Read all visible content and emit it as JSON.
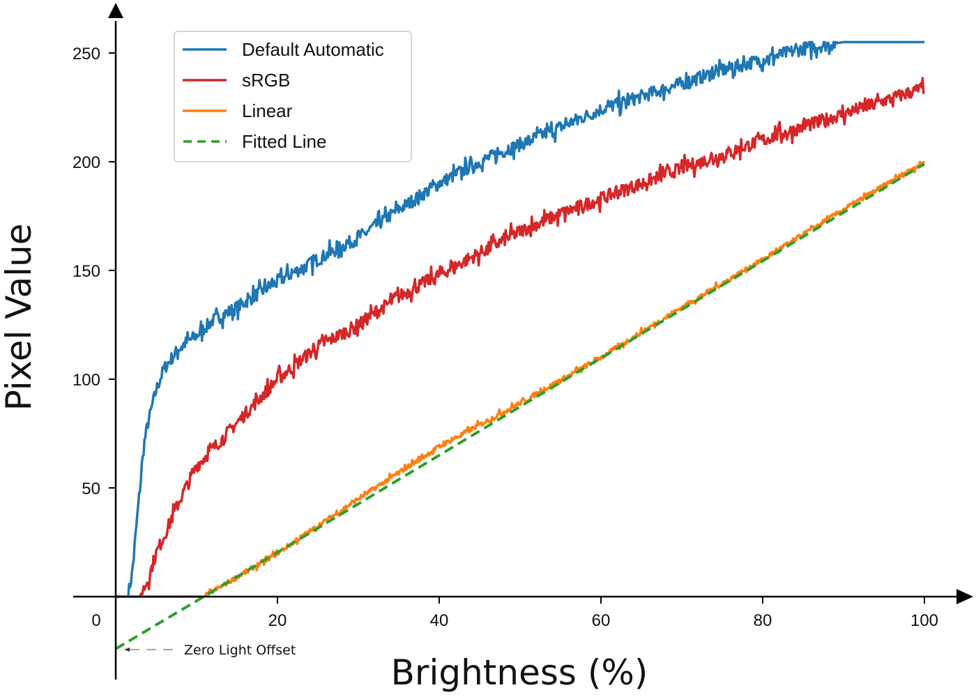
{
  "chart_data": {
    "type": "line",
    "title": "",
    "xlabel": "Brightness (%)",
    "ylabel": "Pixel Value",
    "xlim": [
      0,
      100
    ],
    "ylim": [
      -24,
      260
    ],
    "x_ticks": [
      0,
      20,
      40,
      60,
      80,
      100
    ],
    "x_tick_labels": [
      "0",
      "20",
      "40",
      "60",
      "80",
      "100"
    ],
    "y_ticks": [
      50,
      100,
      150,
      200,
      250
    ],
    "y_tick_labels": [
      "50",
      "100",
      "150",
      "200",
      "250"
    ],
    "grid": false,
    "legend_position": "upper left",
    "annotations": [
      {
        "text": "Zero Light Offset",
        "x": 0,
        "y": -24
      }
    ],
    "series": [
      {
        "name": "Default Automatic",
        "color": "#1f77b4",
        "style": "solid",
        "x": [
          0,
          1.5,
          2,
          2.5,
          3,
          3.5,
          4,
          5,
          6,
          7,
          8,
          10,
          12,
          15,
          20,
          25,
          30,
          35,
          40,
          45,
          50,
          55,
          60,
          65,
          70,
          75,
          80,
          85,
          90,
          95,
          100
        ],
        "values": [
          0,
          0,
          10,
          30,
          50,
          70,
          80,
          95,
          105,
          110,
          115,
          120,
          127,
          133,
          145,
          155,
          165,
          178,
          190,
          200,
          208,
          216,
          224,
          230,
          236,
          242,
          247,
          252,
          255,
          255,
          255
        ]
      },
      {
        "name": "sRGB",
        "color": "#d62728",
        "style": "solid",
        "x": [
          0,
          3,
          4,
          5,
          6,
          8,
          10,
          12,
          15,
          20,
          25,
          30,
          35,
          40,
          45,
          50,
          55,
          60,
          65,
          70,
          75,
          80,
          85,
          90,
          95,
          100
        ],
        "values": [
          0,
          0,
          8,
          20,
          28,
          45,
          60,
          68,
          80,
          100,
          115,
          125,
          138,
          148,
          158,
          168,
          176,
          183,
          190,
          197,
          203,
          210,
          216,
          222,
          228,
          234
        ]
      },
      {
        "name": "Linear",
        "color": "#ff7f0e",
        "style": "solid",
        "x": [
          0,
          10.9,
          20,
          30,
          40,
          50,
          60,
          70,
          80,
          90,
          100
        ],
        "values": [
          0,
          0,
          20,
          45,
          69,
          89,
          110,
          133,
          155,
          178,
          200
        ]
      },
      {
        "name": "Fitted Line",
        "color": "#2ca02c",
        "style": "dashed",
        "x": [
          0,
          10.9,
          100
        ],
        "values": [
          -24,
          0,
          199
        ]
      }
    ]
  }
}
